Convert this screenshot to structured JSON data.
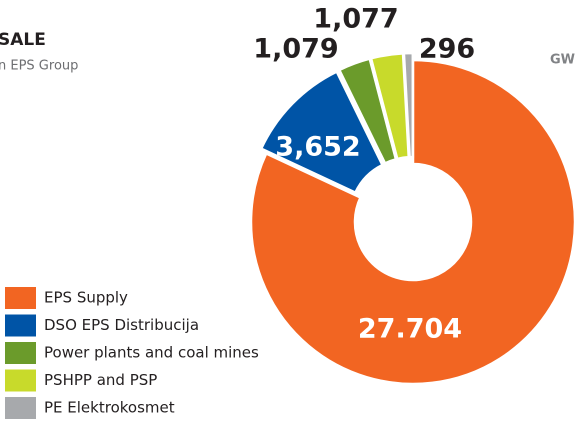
{
  "chart_data": {
    "type": "donut",
    "title": "SALE",
    "subtitle": "n EPS Group",
    "unit_label": "GW",
    "categories": [
      "EPS Supply",
      "DSO EPS Distribucija",
      "Power plants and coal mines",
      "PSHPP and PSP",
      "PE Elektrokosmet"
    ],
    "values": [
      27704,
      3652,
      1079,
      1077,
      296
    ],
    "value_labels": [
      "27.704",
      "3,652",
      "1,079",
      "1,077",
      "296"
    ],
    "colors": [
      "#f26522",
      "#0054a6",
      "#6b9b2b",
      "#c8da2b",
      "#a7a9ac"
    ],
    "legend": "bottom-left"
  }
}
